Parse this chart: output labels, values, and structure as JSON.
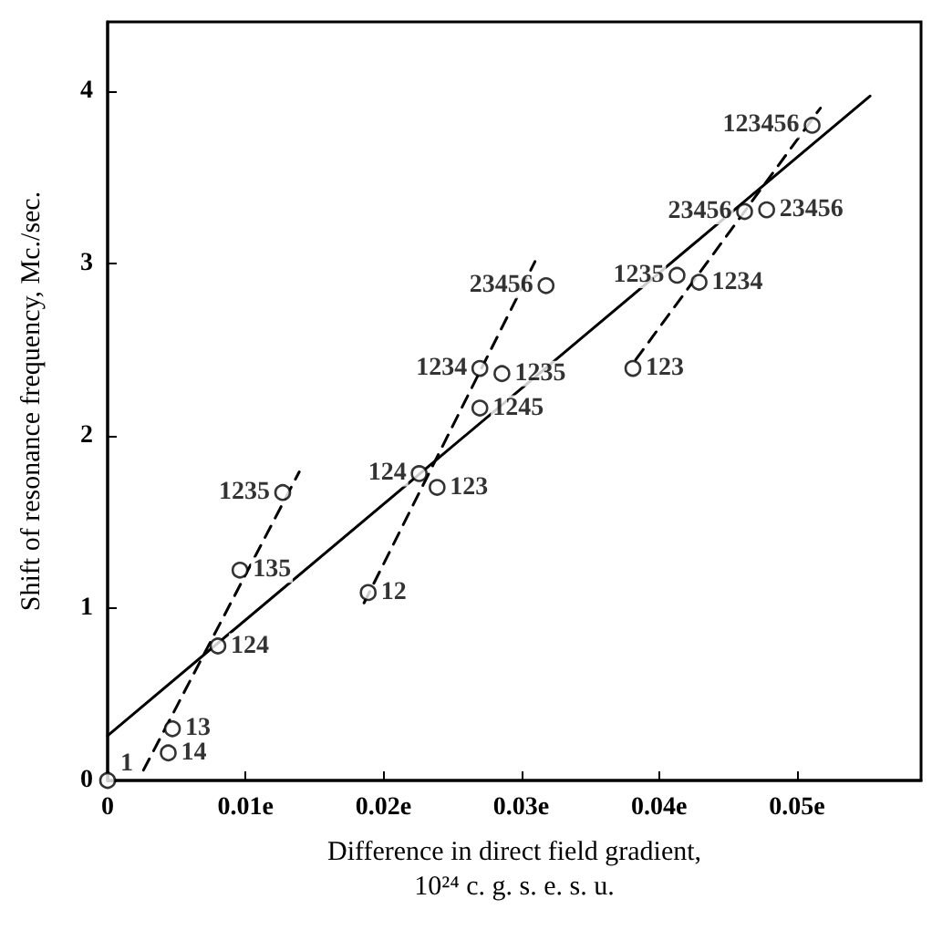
{
  "chart_data": {
    "type": "scatter",
    "xlabel": "Difference in direct field gradient,\n10²⁴ c. g. s. e. s. u.",
    "ylabel": "Shift of resonance frequency, Mc./sec.",
    "xlim": [
      0,
      0.059
    ],
    "ylim": [
      0,
      4.4
    ],
    "xticks": [
      0,
      {
        "value": 0.01,
        "label": "0.01e"
      },
      {
        "value": 0.02,
        "label": "0.02e"
      },
      {
        "value": 0.03,
        "label": "0.03e"
      },
      {
        "value": 0.04,
        "label": "0.04e"
      },
      {
        "value": 0.05,
        "label": "0.05e"
      }
    ],
    "yticks": [
      0,
      1,
      2,
      3,
      4
    ],
    "grid": false,
    "series": [
      {
        "type": "line",
        "color": "#000000",
        "line_style": "solid",
        "marker": "none",
        "x": [
          0,
          0.0553
        ],
        "values": [
          0.26,
          3.97
        ]
      },
      {
        "type": "line",
        "color": "#000000",
        "line_style": "dashed",
        "marker": "none",
        "x": [
          0.0026,
          0.0139
        ],
        "values": [
          0.06,
          1.79
        ]
      },
      {
        "type": "line",
        "color": "#000000",
        "line_style": "dashed",
        "marker": "none",
        "x": [
          0.0186,
          0.031
        ],
        "values": [
          1.03,
          3.01
        ]
      },
      {
        "type": "line",
        "color": "#000000",
        "line_style": "dashed",
        "marker": "none",
        "x": [
          0.0383,
          0.0517
        ],
        "values": [
          2.44,
          3.9
        ]
      },
      {
        "color": "#000000",
        "marker": "circle",
        "x": [
          0,
          0.0047,
          0.0044,
          0.008,
          0.0096,
          0.0127,
          0.0189,
          0.0226,
          0.0239,
          0.027,
          0.027,
          0.0286,
          0.0318,
          0.0381,
          0.0413,
          0.0429,
          0.0462,
          0.0478,
          0.0511
        ],
        "values": [
          0,
          0.3,
          0.16,
          0.78,
          1.22,
          1.67,
          1.09,
          1.78,
          1.7,
          2.16,
          2.39,
          2.36,
          2.87,
          2.39,
          2.93,
          2.89,
          3.3,
          3.31,
          3.8
        ]
      }
    ],
    "annotations": [
      {
        "text": "1",
        "x": 0,
        "y": 0
      },
      {
        "text": "13",
        "x": 0.0047,
        "y": 0.3
      },
      {
        "text": "14",
        "x": 0.0044,
        "y": 0.16
      },
      {
        "text": "124",
        "x": 0.008,
        "y": 0.78
      },
      {
        "text": "135",
        "x": 0.0096,
        "y": 1.22
      },
      {
        "text": "1235",
        "x": 0.0127,
        "y": 1.67
      },
      {
        "text": "12",
        "x": 0.0189,
        "y": 1.09
      },
      {
        "text": "124",
        "x": 0.0226,
        "y": 1.78
      },
      {
        "text": "123",
        "x": 0.0239,
        "y": 1.7
      },
      {
        "text": "1245",
        "x": 0.027,
        "y": 2.16
      },
      {
        "text": "1234",
        "x": 0.027,
        "y": 2.39
      },
      {
        "text": "1235",
        "x": 0.0286,
        "y": 2.36
      },
      {
        "text": "23456",
        "x": 0.0318,
        "y": 2.87
      },
      {
        "text": "123",
        "x": 0.0381,
        "y": 2.39
      },
      {
        "text": "1235",
        "x": 0.0413,
        "y": 2.93
      },
      {
        "text": "1234",
        "x": 0.0429,
        "y": 2.89
      },
      {
        "text": "23456",
        "x": 0.0462,
        "y": 3.3
      },
      {
        "text": "23456",
        "x": 0.0478,
        "y": 3.31
      },
      {
        "text": "123456",
        "x": 0.0511,
        "y": 3.8
      }
    ]
  }
}
